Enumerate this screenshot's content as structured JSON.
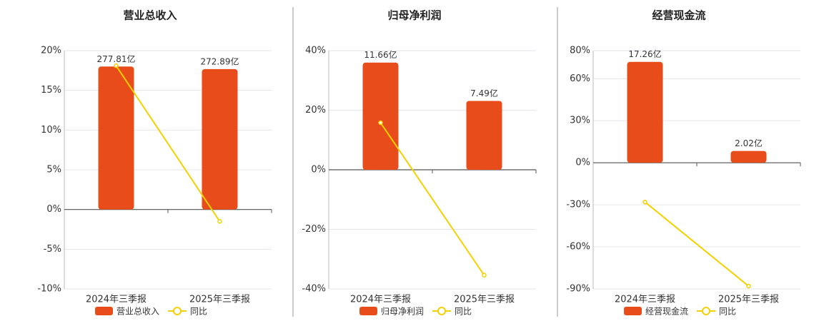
{
  "chart_data": [
    {
      "type": "bar",
      "title": "营业总收入",
      "categories": [
        "2024年三季报",
        "2025年三季报"
      ],
      "series": [
        {
          "name": "营业总收入",
          "type": "bar",
          "color": "#e84c1a",
          "values": [
            277.81,
            272.89
          ],
          "value_labels": [
            "277.81亿",
            "272.89亿"
          ]
        },
        {
          "name": "同比",
          "type": "line",
          "color": "#f5d000",
          "values": [
            18.1,
            -1.5
          ]
        }
      ],
      "ylim": [
        -10,
        20
      ],
      "yticks": [
        {
          "value": -10,
          "label": "-10%"
        },
        {
          "value": -5,
          "label": "-5%"
        },
        {
          "value": 0,
          "label": "0%"
        },
        {
          "value": 5,
          "label": "5%"
        },
        {
          "value": 10,
          "label": "10%"
        },
        {
          "value": 15,
          "label": "15%"
        },
        {
          "value": 20,
          "label": "20%"
        }
      ],
      "grid": true
    },
    {
      "type": "bar",
      "title": "归母净利润",
      "categories": [
        "2024年三季报",
        "2025年三季报"
      ],
      "series": [
        {
          "name": "归母净利润",
          "type": "bar",
          "color": "#e84c1a",
          "values": [
            11.66,
            7.49
          ],
          "value_labels": [
            "11.66亿",
            "7.49亿"
          ]
        },
        {
          "name": "同比",
          "type": "line",
          "color": "#f5d000",
          "values": [
            15.8,
            -35.4
          ]
        }
      ],
      "ylim": [
        -40,
        40
      ],
      "yticks": [
        {
          "value": -40,
          "label": "-40%"
        },
        {
          "value": -20,
          "label": "-20%"
        },
        {
          "value": 0,
          "label": "0%"
        },
        {
          "value": 20,
          "label": "20%"
        },
        {
          "value": 40,
          "label": "40%"
        }
      ],
      "grid": true
    },
    {
      "type": "bar",
      "title": "经营现金流",
      "categories": [
        "2024年三季报",
        "2025年三季报"
      ],
      "series": [
        {
          "name": "经营现金流",
          "type": "bar",
          "color": "#e84c1a",
          "values": [
            17.26,
            2.02
          ],
          "value_labels": [
            "17.26亿",
            "2.02亿"
          ]
        },
        {
          "name": "同比",
          "type": "line",
          "color": "#f5d000",
          "values": [
            -28,
            -88
          ]
        }
      ],
      "ylim": [
        -90,
        80
      ],
      "yticks": [
        {
          "value": -90,
          "label": "-90%"
        },
        {
          "value": -60,
          "label": "-60%"
        },
        {
          "value": -30,
          "label": "-30%"
        },
        {
          "value": 0,
          "label": "0%"
        },
        {
          "value": 30,
          "label": "30%"
        },
        {
          "value": 60,
          "label": "60%"
        },
        {
          "value": 80,
          "label": "80%"
        }
      ],
      "grid": true
    }
  ]
}
